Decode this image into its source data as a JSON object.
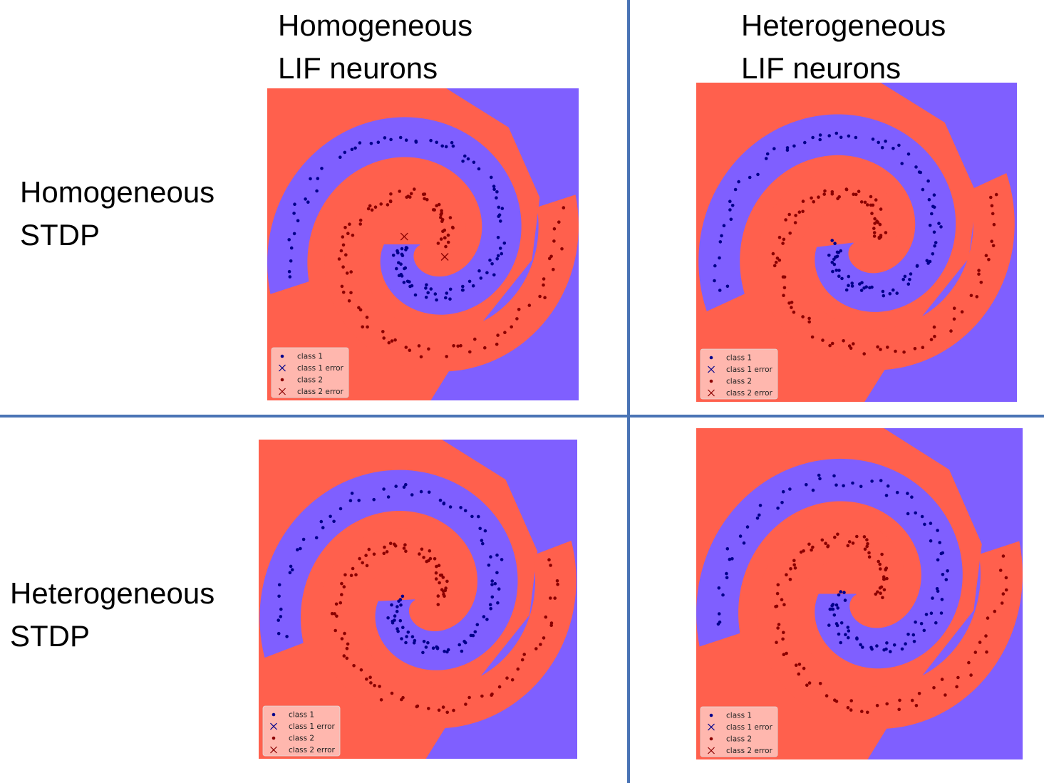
{
  "column_headers": [
    {
      "line1": "Homogeneous",
      "line2": "LIF neurons"
    },
    {
      "line1": "Heterogeneous",
      "line2": "LIF neurons"
    }
  ],
  "row_headers": [
    {
      "line1": "Homogeneous",
      "line2": "STDP"
    },
    {
      "line1": "Heterogeneous",
      "line2": "STDP"
    }
  ],
  "colors": {
    "class1_region": "#7f5fff",
    "class2_region": "#ff604d",
    "class1_point": "#00008b",
    "class2_point": "#8b0000",
    "divider": "#4a74b5"
  },
  "legend": {
    "class1": "class 1",
    "class1_error": "class 1 error",
    "class2": "class 2",
    "class2_error": "class 2 error"
  },
  "chart_data": [
    {
      "type": "scatter",
      "panel": "homogeneous-lif-homogeneous-stdp",
      "title": "",
      "xlabel": "",
      "ylabel": "",
      "xlim": [
        -1,
        1
      ],
      "ylim": [
        -1,
        1
      ],
      "grid": false,
      "legend_position": "lower-left",
      "spiral_turns": 1.05,
      "spiral_phase": 0.0,
      "errors": [
        {
          "class": 2,
          "x": -0.12,
          "y": 0.05
        },
        {
          "class": 2,
          "x": 0.14,
          "y": -0.08
        }
      ]
    },
    {
      "type": "scatter",
      "panel": "heterogeneous-lif-homogeneous-stdp",
      "title": "",
      "xlabel": "",
      "ylabel": "",
      "xlim": [
        -1,
        1
      ],
      "ylim": [
        -1,
        1
      ],
      "grid": false,
      "legend_position": "lower-left",
      "spiral_turns": 1.05,
      "spiral_phase": 0.12,
      "errors": []
    },
    {
      "type": "scatter",
      "panel": "homogeneous-lif-heterogeneous-stdp",
      "title": "",
      "xlabel": "",
      "ylabel": "",
      "xlim": [
        -1,
        1
      ],
      "ylim": [
        -1,
        1
      ],
      "grid": false,
      "legend_position": "lower-left",
      "spiral_turns": 1.05,
      "spiral_phase": 0.05,
      "errors": []
    },
    {
      "type": "scatter",
      "panel": "heterogeneous-lif-heterogeneous-stdp",
      "title": "",
      "xlabel": "",
      "ylabel": "",
      "xlim": [
        -1,
        1
      ],
      "ylim": [
        -1,
        1
      ],
      "grid": false,
      "legend_position": "lower-left",
      "spiral_turns": 1.05,
      "spiral_phase": 0.0,
      "errors": []
    }
  ]
}
